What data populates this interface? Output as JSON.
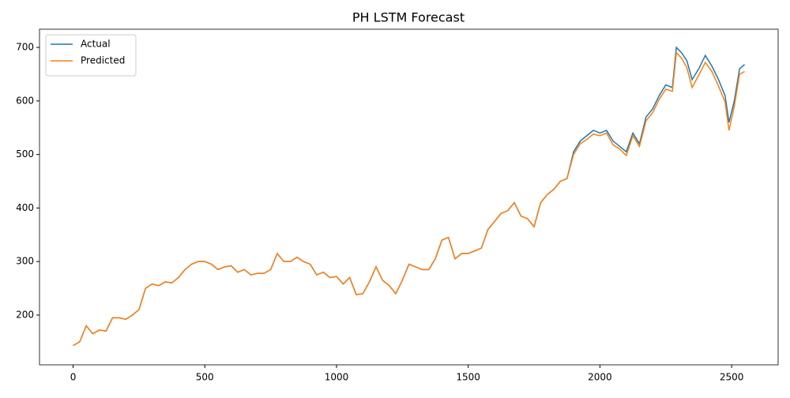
{
  "chart_data": {
    "type": "line",
    "title": "PH LSTM Forecast",
    "x": [
      0,
      25,
      50,
      75,
      100,
      125,
      150,
      175,
      200,
      225,
      250,
      275,
      300,
      325,
      350,
      375,
      400,
      425,
      450,
      475,
      500,
      525,
      550,
      575,
      600,
      625,
      650,
      675,
      700,
      725,
      750,
      775,
      800,
      825,
      850,
      875,
      900,
      925,
      950,
      975,
      1000,
      1025,
      1050,
      1075,
      1100,
      1125,
      1150,
      1175,
      1200,
      1225,
      1250,
      1275,
      1300,
      1325,
      1350,
      1375,
      1400,
      1425,
      1450,
      1475,
      1500,
      1525,
      1550,
      1575,
      1600,
      1625,
      1650,
      1675,
      1700,
      1725,
      1750,
      1775,
      1800,
      1825,
      1850,
      1875,
      1900,
      1925,
      1950,
      1975,
      2000,
      2025,
      2050,
      2075,
      2100,
      2125,
      2150,
      2175,
      2200,
      2225,
      2250,
      2275,
      2290,
      2310,
      2330,
      2350,
      2375,
      2400,
      2425,
      2450,
      2475,
      2490,
      2510,
      2530,
      2549
    ],
    "series": [
      {
        "name": "Actual",
        "color": "#1f77b4",
        "values": [
          143,
          150,
          180,
          165,
          172,
          170,
          195,
          195,
          192,
          200,
          210,
          250,
          258,
          255,
          262,
          260,
          270,
          285,
          295,
          300,
          300,
          295,
          285,
          290,
          292,
          280,
          285,
          275,
          278,
          278,
          285,
          315,
          300,
          300,
          308,
          300,
          295,
          275,
          280,
          270,
          272,
          258,
          270,
          238,
          240,
          262,
          290,
          265,
          255,
          240,
          265,
          295,
          290,
          285,
          285,
          305,
          340,
          345,
          305,
          315,
          315,
          320,
          325,
          360,
          375,
          390,
          395,
          410,
          385,
          380,
          365,
          410,
          425,
          435,
          450,
          455,
          505,
          525,
          535,
          545,
          540,
          545,
          525,
          515,
          505,
          540,
          520,
          570,
          585,
          610,
          630,
          625,
          700,
          690,
          675,
          640,
          660,
          685,
          665,
          640,
          610,
          560,
          600,
          660,
          668
        ]
      },
      {
        "name": "Predicted",
        "color": "#ff7f0e",
        "values": [
          143,
          150,
          180,
          165,
          172,
          170,
          195,
          195,
          192,
          200,
          210,
          250,
          258,
          255,
          262,
          260,
          270,
          285,
          295,
          300,
          300,
          295,
          285,
          290,
          292,
          280,
          285,
          275,
          278,
          278,
          285,
          315,
          300,
          300,
          308,
          300,
          295,
          275,
          280,
          270,
          272,
          258,
          270,
          238,
          240,
          262,
          290,
          265,
          255,
          240,
          265,
          295,
          290,
          285,
          285,
          305,
          340,
          345,
          305,
          315,
          315,
          320,
          325,
          360,
          375,
          390,
          395,
          410,
          385,
          380,
          365,
          410,
          425,
          435,
          450,
          455,
          500,
          520,
          528,
          538,
          535,
          540,
          518,
          510,
          498,
          535,
          515,
          563,
          578,
          603,
          622,
          618,
          690,
          680,
          662,
          625,
          648,
          672,
          655,
          628,
          598,
          545,
          590,
          650,
          655
        ]
      }
    ],
    "xlim": [
      -127.5,
      2676.5
    ],
    "xticks": [
      0,
      500,
      1000,
      1500,
      2000,
      2500
    ],
    "ylim": [
      107,
      734
    ],
    "yticks": [
      200,
      300,
      400,
      500,
      600,
      700
    ],
    "legend": "upper-left"
  }
}
